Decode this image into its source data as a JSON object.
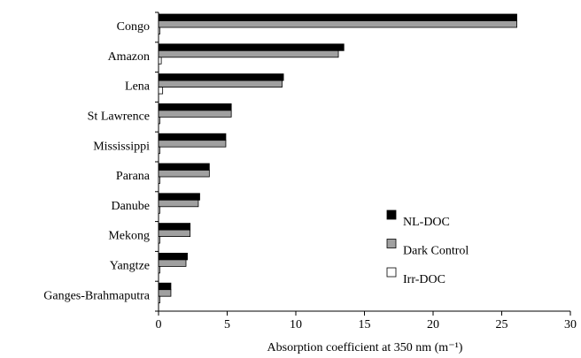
{
  "chart_data": {
    "type": "hbar",
    "categories": [
      "Congo",
      "Amazon",
      "Lena",
      "St Lawrence",
      "Mississippi",
      "Parana",
      "Danube",
      "Mekong",
      "Yangtze",
      "Ganges-Brahmaputra"
    ],
    "series": [
      {
        "name": "NL-DOC",
        "color": "#000000",
        "values": [
          26.1,
          13.5,
          9.1,
          5.3,
          4.9,
          3.7,
          3.0,
          2.3,
          2.1,
          0.9
        ]
      },
      {
        "name": "Dark Control",
        "color": "#a0a0a0",
        "values": [
          26.1,
          13.1,
          9.0,
          5.3,
          4.9,
          3.7,
          2.9,
          2.3,
          2.0,
          0.9
        ]
      },
      {
        "name": "Irr-DOC",
        "color": "#ffffff",
        "values": [
          0.1,
          0.2,
          0.3,
          0.1,
          0.1,
          0.1,
          0.1,
          0.1,
          0.1,
          0.1
        ]
      }
    ],
    "xlabel": "Absorption coefficient at 350 nm (m⁻¹)",
    "xlim": [
      0,
      30
    ],
    "xticks": [
      0,
      5,
      10,
      15,
      20,
      25,
      30
    ],
    "legend": "lower right",
    "grid": false
  }
}
